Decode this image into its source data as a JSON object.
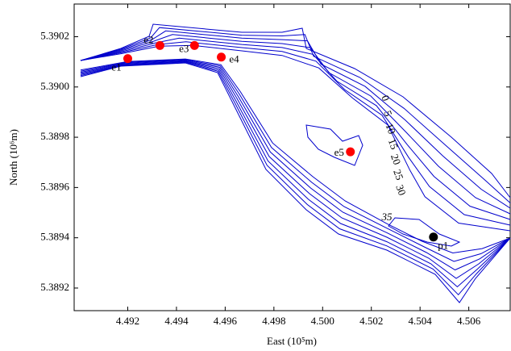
{
  "chart_data": {
    "type": "scatter",
    "xlabel": "East (10⁵m)",
    "ylabel": "North (10⁶m)",
    "xlim": [
      4.4898,
      4.5077
    ],
    "ylim": [
      5.38911,
      5.39033
    ],
    "xticks": [
      4.492,
      4.494,
      4.496,
      4.498,
      {
        "value": 4.5,
        "label": "4.500"
      },
      4.502,
      4.504,
      4.506
    ],
    "yticks": [
      5.3892,
      5.3894,
      5.3896,
      5.3898,
      {
        "value": 5.39,
        "label": "5.3900"
      },
      5.3902
    ],
    "contour_levels": [
      0,
      5,
      10,
      15,
      20,
      25,
      30,
      35
    ],
    "contour_color": "#0000cc",
    "points": [
      {
        "label": "e1",
        "x": 4.492,
        "y": 5.390113,
        "color": "#ff0000"
      },
      {
        "label": "e2",
        "x": 4.49332,
        "y": 5.390165,
        "color": "#ff0000"
      },
      {
        "label": "e3",
        "x": 4.49474,
        "y": 5.390165,
        "color": "#ff0000"
      },
      {
        "label": "e4",
        "x": 4.49584,
        "y": 5.390119,
        "color": "#ff0000"
      },
      {
        "label": "e5",
        "x": 4.50114,
        "y": 5.389742,
        "color": "#ff0000"
      },
      {
        "label": "p1",
        "x": 4.50455,
        "y": 5.389403,
        "color": "#000000"
      }
    ]
  }
}
